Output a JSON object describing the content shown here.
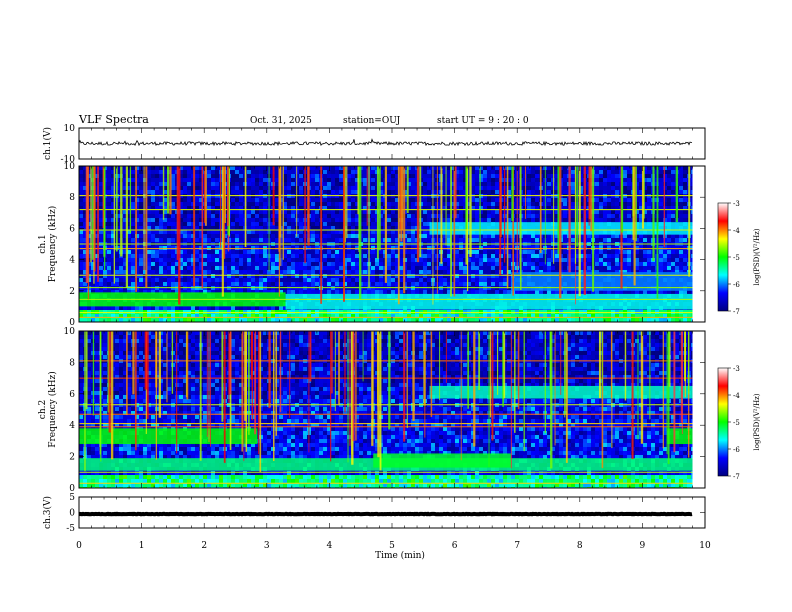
{
  "header": {
    "title": "VLF Spectra",
    "date": "Oct. 31, 2025",
    "station": "station=OUJ",
    "start_time": "start  UT =   9 : 20 : 0"
  },
  "chart_data": {
    "type": "heatmap",
    "xlabel": "Time  (min)",
    "xlim": [
      0,
      10
    ],
    "xticks": [
      "0",
      "1",
      "2",
      "3",
      "4",
      "5",
      "6",
      "7",
      "8",
      "9",
      "10"
    ],
    "data_end_min": 9.8,
    "colormap": [
      "#000080",
      "#0000ff",
      "#00ffff",
      "#00ff00",
      "#ffff00",
      "#ff0000",
      "#ffffff"
    ],
    "colorbar": {
      "label": "log(PSD)(V²/Hz)",
      "range": [
        -7,
        -3
      ],
      "ticks": [
        "-3",
        "-4",
        "-5",
        "-6",
        "-7"
      ]
    },
    "panels": [
      {
        "id": "ch1-waveform",
        "type": "line",
        "ylabel": "ch.1(V)",
        "ylim": [
          -10,
          10
        ],
        "yticks": [
          "10",
          "-10"
        ],
        "baseline": 0
      },
      {
        "id": "ch1-spectrogram",
        "type": "heatmap",
        "ylabel": "ch.1\nFrequency  (kHz)",
        "ylim": [
          0,
          10
        ],
        "yticks": [
          "0",
          "2",
          "4",
          "6",
          "8",
          "10"
        ],
        "bands": [
          {
            "t0": 0,
            "t1": 3.3,
            "f0": 1.0,
            "f1": 1.9,
            "level": -5.0
          },
          {
            "t0": 3.3,
            "t1": 9.8,
            "f0": 0.8,
            "f1": 1.8,
            "level": -5.6
          },
          {
            "t0": 5.6,
            "t1": 9.8,
            "f0": 5.6,
            "f1": 6.4,
            "level": -5.7
          },
          {
            "t0": 6.9,
            "t1": 9.8,
            "f0": 2.0,
            "f1": 3.2,
            "level": -6.0
          }
        ],
        "lines_khz": [
          0.3,
          0.6,
          1.45,
          2.2,
          3.0,
          4.7,
          5.0,
          5.9,
          7.2,
          8.1
        ]
      },
      {
        "id": "ch2-spectrogram",
        "type": "heatmap",
        "ylabel": "ch.2\nFrequency  (kHz)",
        "ylim": [
          0,
          10
        ],
        "yticks": [
          "0",
          "2",
          "4",
          "6",
          "8",
          "10"
        ],
        "bands": [
          {
            "t0": 0,
            "t1": 2.85,
            "f0": 2.8,
            "f1": 3.8,
            "level": -5.0
          },
          {
            "t0": 0,
            "t1": 9.8,
            "f0": 1.1,
            "f1": 1.9,
            "level": -5.3
          },
          {
            "t0": 4.7,
            "t1": 6.9,
            "f0": 1.3,
            "f1": 2.2,
            "level": -5.1
          },
          {
            "t0": 5.6,
            "t1": 9.8,
            "f0": 5.7,
            "f1": 6.5,
            "level": -5.5
          },
          {
            "t0": 9.4,
            "t1": 9.8,
            "f0": 2.8,
            "f1": 3.8,
            "level": -5.0
          }
        ],
        "lines_khz": [
          0.3,
          1.0,
          3.9,
          4.1,
          4.7,
          5.3,
          7.0,
          8.1
        ]
      },
      {
        "id": "ch3-waveform",
        "type": "line",
        "ylabel": "ch.3(V)",
        "ylim": [
          -5,
          5
        ],
        "yticks": [
          "5",
          "0",
          "-5"
        ],
        "baseline": -0.5
      }
    ]
  }
}
